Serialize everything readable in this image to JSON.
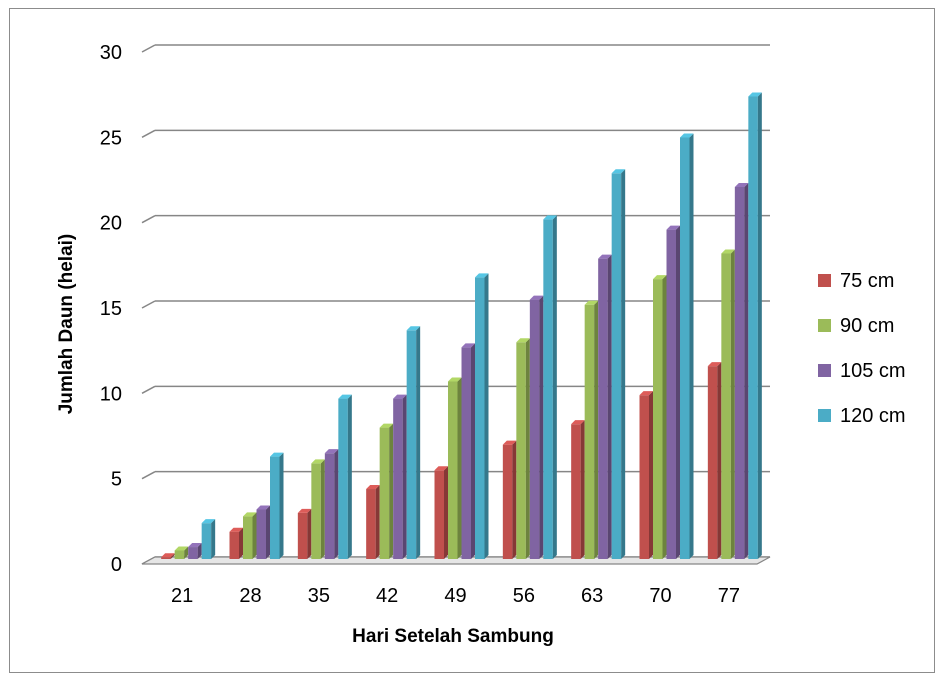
{
  "chart_data": {
    "type": "bar",
    "style": "3d-clustered-column",
    "title": "",
    "xlabel": "Hari Setelah Sambung",
    "ylabel": "Jumlah Daun (helai)",
    "categories": [
      "21",
      "28",
      "35",
      "42",
      "49",
      "56",
      "63",
      "70",
      "77"
    ],
    "ylim": [
      0,
      30
    ],
    "yticks": [
      0,
      5,
      10,
      15,
      20,
      25,
      30
    ],
    "grid": true,
    "legend": "right",
    "series": [
      {
        "name": "75 cm",
        "color": "#c0504d",
        "values": [
          0.1,
          1.6,
          2.7,
          4.1,
          5.2,
          6.7,
          7.9,
          9.6,
          11.3
        ]
      },
      {
        "name": "90 cm",
        "color": "#9bbb59",
        "values": [
          0.5,
          2.5,
          5.6,
          7.7,
          10.4,
          12.7,
          14.9,
          16.4,
          17.9
        ]
      },
      {
        "name": "105 cm",
        "color": "#8064a2",
        "values": [
          0.7,
          2.9,
          6.2,
          9.4,
          12.4,
          15.2,
          17.6,
          19.3,
          21.8
        ]
      },
      {
        "name": "120 cm",
        "color": "#4bacc6",
        "values": [
          2.1,
          6.0,
          9.4,
          13.4,
          16.5,
          19.9,
          22.6,
          24.7,
          27.1
        ]
      }
    ]
  }
}
